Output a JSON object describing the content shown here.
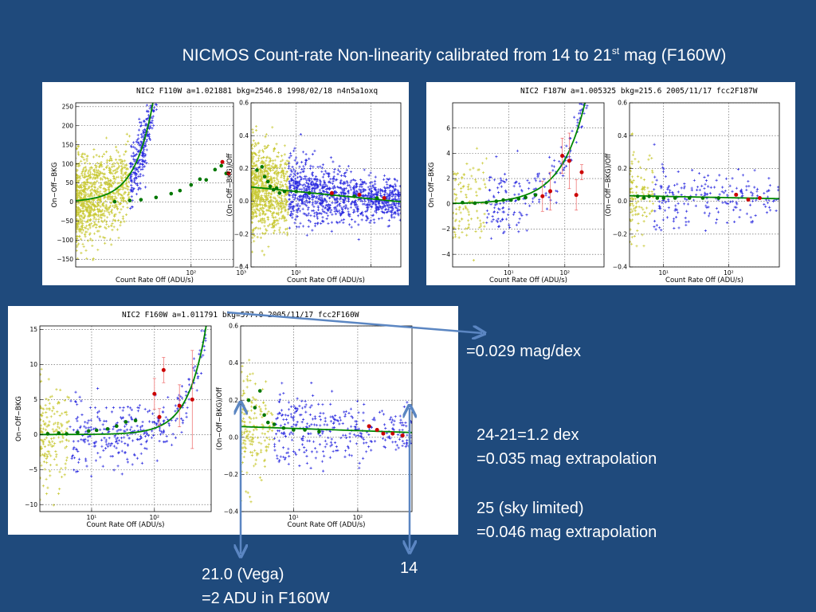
{
  "slide": {
    "title_main": "NICMOS Count-rate Non-linearity calibrated from 14 to 21",
    "title_sup": "st",
    "title_tail": " mag (F160W)",
    "notes": {
      "slope": "=0.029 mag/dex",
      "line1": "24-21=1.2 dex",
      "line2": "=0.035 mag extrapolation",
      "line3": "25 (sky limited)",
      "line4": "=0.046 mag extrapolation",
      "mag14": "14",
      "vega": "21.0 (Vega)",
      "adu": "=2 ADU in F160W"
    },
    "colors": {
      "background": "#1f4a7c",
      "arrow": "#5b86c2",
      "data_blue": "#2a2adf",
      "data_yellow": "#c8c832",
      "binned": "#cc0000",
      "fit": "#008800",
      "binned_low": "#007700"
    }
  },
  "chart_data": [
    {
      "type": "scatter",
      "title": "NIC2  F110W  a=1.021881  bkg=2546.8  1998/02/18  n4n5a1oxq",
      "left": {
        "ylabel": "On−Off−BKG",
        "xlabel": "Count Rate Off (ADU/s)",
        "xlim": [
          0.5,
          700
        ],
        "ylim": [
          -170,
          260
        ],
        "xscale": "log",
        "grid": true,
        "yticks": [
          250,
          200,
          150,
          100,
          50,
          0,
          -50,
          -100,
          -150
        ],
        "xticks": [
          100,
          1000
        ],
        "xtick_labels": [
          "10²",
          "10³"
        ],
        "fit": {
          "type": "power",
          "A": 8.5,
          "p": 1.2
        },
        "binned_points": [
          {
            "x": 3,
            "y": 1
          },
          {
            "x": 6,
            "y": 4
          },
          {
            "x": 10,
            "y": 6
          },
          {
            "x": 20,
            "y": 12
          },
          {
            "x": 40,
            "y": 22
          },
          {
            "x": 60,
            "y": 30
          },
          {
            "x": 100,
            "y": 45
          },
          {
            "x": 150,
            "y": 60
          },
          {
            "x": 200,
            "y": 58
          },
          {
            "x": 300,
            "y": 85
          },
          {
            "x": 400,
            "y": 95
          },
          {
            "x": 500,
            "y": 75
          }
        ],
        "red_points": [
          {
            "x": 420,
            "y": 105
          },
          {
            "x": 560,
            "y": 75
          }
        ],
        "cloud_density": 1800,
        "yellow_xmax": 6
      },
      "right": {
        "ylabel": "(On−Off−BKG)/Off",
        "xlabel": "Count Rate Off (ADU/s)",
        "xlim": [
          25,
          2500
        ],
        "ylim": [
          -0.4,
          0.6
        ],
        "xscale": "log",
        "grid": true,
        "yticks": [
          0.6,
          0.4,
          0.2,
          0.0,
          -0.2,
          -0.4
        ],
        "ytick_labels": [
          "0.6",
          "0.4",
          "0.2",
          "0.0",
          "−0.2",
          "−0.4"
        ],
        "xticks": [
          100,
          1000
        ],
        "xtick_labels": [
          "10²",
          ""
        ],
        "fit": {
          "type": "slope",
          "b": 0.06,
          "c": -0.045,
          "x0": 100
        },
        "binned_points": [
          {
            "x": 30,
            "y": 0.19
          },
          {
            "x": 35,
            "y": 0.21
          },
          {
            "x": 38,
            "y": 0.15
          },
          {
            "x": 42,
            "y": 0.12
          },
          {
            "x": 45,
            "y": 0.09
          },
          {
            "x": 50,
            "y": 0.07
          },
          {
            "x": 55,
            "y": 0.08
          },
          {
            "x": 60,
            "y": 0.05
          },
          {
            "x": 70,
            "y": 0.06
          },
          {
            "x": 100,
            "y": 0.06
          },
          {
            "x": 150,
            "y": 0.05
          },
          {
            "x": 300,
            "y": 0.04
          },
          {
            "x": 600,
            "y": 0.03
          },
          {
            "x": 1200,
            "y": 0.02
          }
        ],
        "red_points": [
          {
            "x": 300,
            "y": 0.05
          },
          {
            "x": 700,
            "y": 0.04
          },
          {
            "x": 1500,
            "y": 0.02
          }
        ],
        "cloud_density": 1800,
        "yellow_xmax": 80
      }
    },
    {
      "type": "scatter",
      "title": "NIC2  F187W  a=1.005325  bkg=215.6  2005/11/17   fcc2F187W",
      "left": {
        "ylabel": "On−Off−BKG",
        "xlabel": "Count Rate Off (ADU/s)",
        "xlim": [
          1,
          500
        ],
        "ylim": [
          -5,
          8
        ],
        "xscale": "log",
        "grid": true,
        "yticks": [
          6,
          4,
          2,
          0,
          -2,
          -4
        ],
        "ytick_labels": [
          "6",
          "4",
          "2",
          "0",
          "−2",
          "−4"
        ],
        "xticks": [
          10,
          100
        ],
        "xtick_labels": [
          "10¹",
          "10²"
        ],
        "fit": {
          "type": "power",
          "A": 0.035,
          "p": 1.0
        },
        "binned_points": [
          {
            "x": 1.5,
            "y": 0.1
          },
          {
            "x": 2.5,
            "y": 0.05
          },
          {
            "x": 4,
            "y": 0.1
          },
          {
            "x": 6,
            "y": 0.2
          },
          {
            "x": 8,
            "y": 0.3
          },
          {
            "x": 11,
            "y": 0.3
          },
          {
            "x": 15,
            "y": 0.4
          },
          {
            "x": 20,
            "y": 0.5
          },
          {
            "x": 30,
            "y": 0.7
          }
        ],
        "red_points": [
          {
            "x": 40,
            "y": 0.6,
            "e": 1.2
          },
          {
            "x": 55,
            "y": 1.0,
            "e": 1.5
          },
          {
            "x": 90,
            "y": 3.8,
            "e": 1.4
          },
          {
            "x": 120,
            "y": 3.4,
            "e": 2.2
          },
          {
            "x": 160,
            "y": 0.7,
            "e": 1.2
          },
          {
            "x": 200,
            "y": 2.5,
            "e": 0.6
          }
        ],
        "cloud_density": 320,
        "yellow_xmax": 4
      },
      "right": {
        "ylabel": "(On−Off−BKG)/Off",
        "xlabel": "Count Rate Off (ADU/s)",
        "xlim": [
          3,
          600
        ],
        "ylim": [
          -0.4,
          0.6
        ],
        "xscale": "log",
        "grid": true,
        "yticks": [
          0.6,
          0.4,
          0.2,
          0.0,
          -0.2,
          -0.4
        ],
        "ytick_labels": [
          "0.6",
          "0.4",
          "0.2",
          "0.0",
          "−0.2",
          "−0.4"
        ],
        "xticks": [
          10,
          100
        ],
        "xtick_labels": [
          "10¹",
          "10²"
        ],
        "fit": {
          "type": "slope",
          "b": 0.03,
          "c": -0.008,
          "x0": 10
        },
        "binned_points": [
          {
            "x": 4,
            "y": 0.03
          },
          {
            "x": 5,
            "y": 0.02
          },
          {
            "x": 6,
            "y": 0.03
          },
          {
            "x": 8,
            "y": 0.02
          },
          {
            "x": 10,
            "y": 0.02
          },
          {
            "x": 15,
            "y": 0.02
          },
          {
            "x": 25,
            "y": 0.02
          },
          {
            "x": 40,
            "y": 0.02
          },
          {
            "x": 70,
            "y": 0.02
          }
        ],
        "red_points": [
          {
            "x": 130,
            "y": 0.04
          },
          {
            "x": 200,
            "y": 0.01
          },
          {
            "x": 300,
            "y": 0.02
          }
        ],
        "cloud_density": 320,
        "yellow_xmax": 7
      }
    },
    {
      "type": "scatter",
      "title": "NIC2  F160W  a=1.011791  bkg=577.0  2005/11/17   fcc2F160W",
      "left": {
        "ylabel": "On−Off−BKG",
        "xlabel": "Count Rate Off (ADU/s)",
        "xlim": [
          1.5,
          800
        ],
        "ylim": [
          -11,
          15.5
        ],
        "xscale": "log",
        "grid": true,
        "yticks": [
          15,
          10,
          5,
          0,
          -5,
          -10
        ],
        "ytick_labels": [
          "15",
          "10",
          "5",
          "0",
          "−5",
          "−10"
        ],
        "xticks": [
          10,
          100
        ],
        "xtick_labels": [
          "10¹",
          "10²"
        ],
        "fit": {
          "type": "power",
          "A": 0.0009,
          "p": 1.5
        },
        "binned_points": [
          {
            "x": 2,
            "y": 0.1
          },
          {
            "x": 3,
            "y": 0.2
          },
          {
            "x": 4,
            "y": 0.1
          },
          {
            "x": 6,
            "y": 0.3
          },
          {
            "x": 9,
            "y": 0.5
          },
          {
            "x": 12,
            "y": 0.6
          },
          {
            "x": 18,
            "y": 0.8
          },
          {
            "x": 25,
            "y": 1.2
          },
          {
            "x": 35,
            "y": 1.8
          },
          {
            "x": 50,
            "y": 2.0
          }
        ],
        "red_points": [
          {
            "x": 100,
            "y": 5.8,
            "e": 2.2
          },
          {
            "x": 120,
            "y": 2.5,
            "e": 1.2
          },
          {
            "x": 140,
            "y": 9.2,
            "e": 1.8
          },
          {
            "x": 250,
            "y": 4.1,
            "e": 3.0
          },
          {
            "x": 400,
            "y": 5.0,
            "e": 7.0
          }
        ],
        "cloud_density": 500,
        "yellow_xmax": 4.5
      },
      "right": {
        "ylabel": "(On−Off−BKG)/Off",
        "xlabel": "Count Rate Off (ADU/s)",
        "xlim": [
          1.5,
          700
        ],
        "ylim": [
          -0.4,
          0.6
        ],
        "xscale": "log",
        "grid": true,
        "yticks": [
          0.6,
          0.4,
          0.2,
          0.0,
          -0.2,
          -0.4
        ],
        "ytick_labels": [
          "0.6",
          "0.4",
          "0.2",
          "0.0",
          "−0.2",
          "−0.4"
        ],
        "xticks": [
          10,
          100
        ],
        "xtick_labels": [
          "10¹",
          "10²"
        ],
        "fit": {
          "type": "slope",
          "b": 0.048,
          "c": -0.012,
          "x0": 10
        },
        "binned_points": [
          {
            "x": 2,
            "y": 0.2
          },
          {
            "x": 2.5,
            "y": 0.16
          },
          {
            "x": 3,
            "y": 0.25
          },
          {
            "x": 3.5,
            "y": 0.12
          },
          {
            "x": 4,
            "y": 0.08
          },
          {
            "x": 5,
            "y": 0.07
          },
          {
            "x": 7,
            "y": 0.05
          },
          {
            "x": 10,
            "y": 0.04
          },
          {
            "x": 15,
            "y": 0.04
          },
          {
            "x": 25,
            "y": 0.03
          }
        ],
        "red_points": [
          {
            "x": 150,
            "y": 0.06
          },
          {
            "x": 200,
            "y": 0.04
          },
          {
            "x": 250,
            "y": 0.02
          },
          {
            "x": 350,
            "y": 0.02
          },
          {
            "x": 500,
            "y": 0.01
          }
        ],
        "cloud_density": 500,
        "yellow_xmax": 5
      }
    }
  ]
}
